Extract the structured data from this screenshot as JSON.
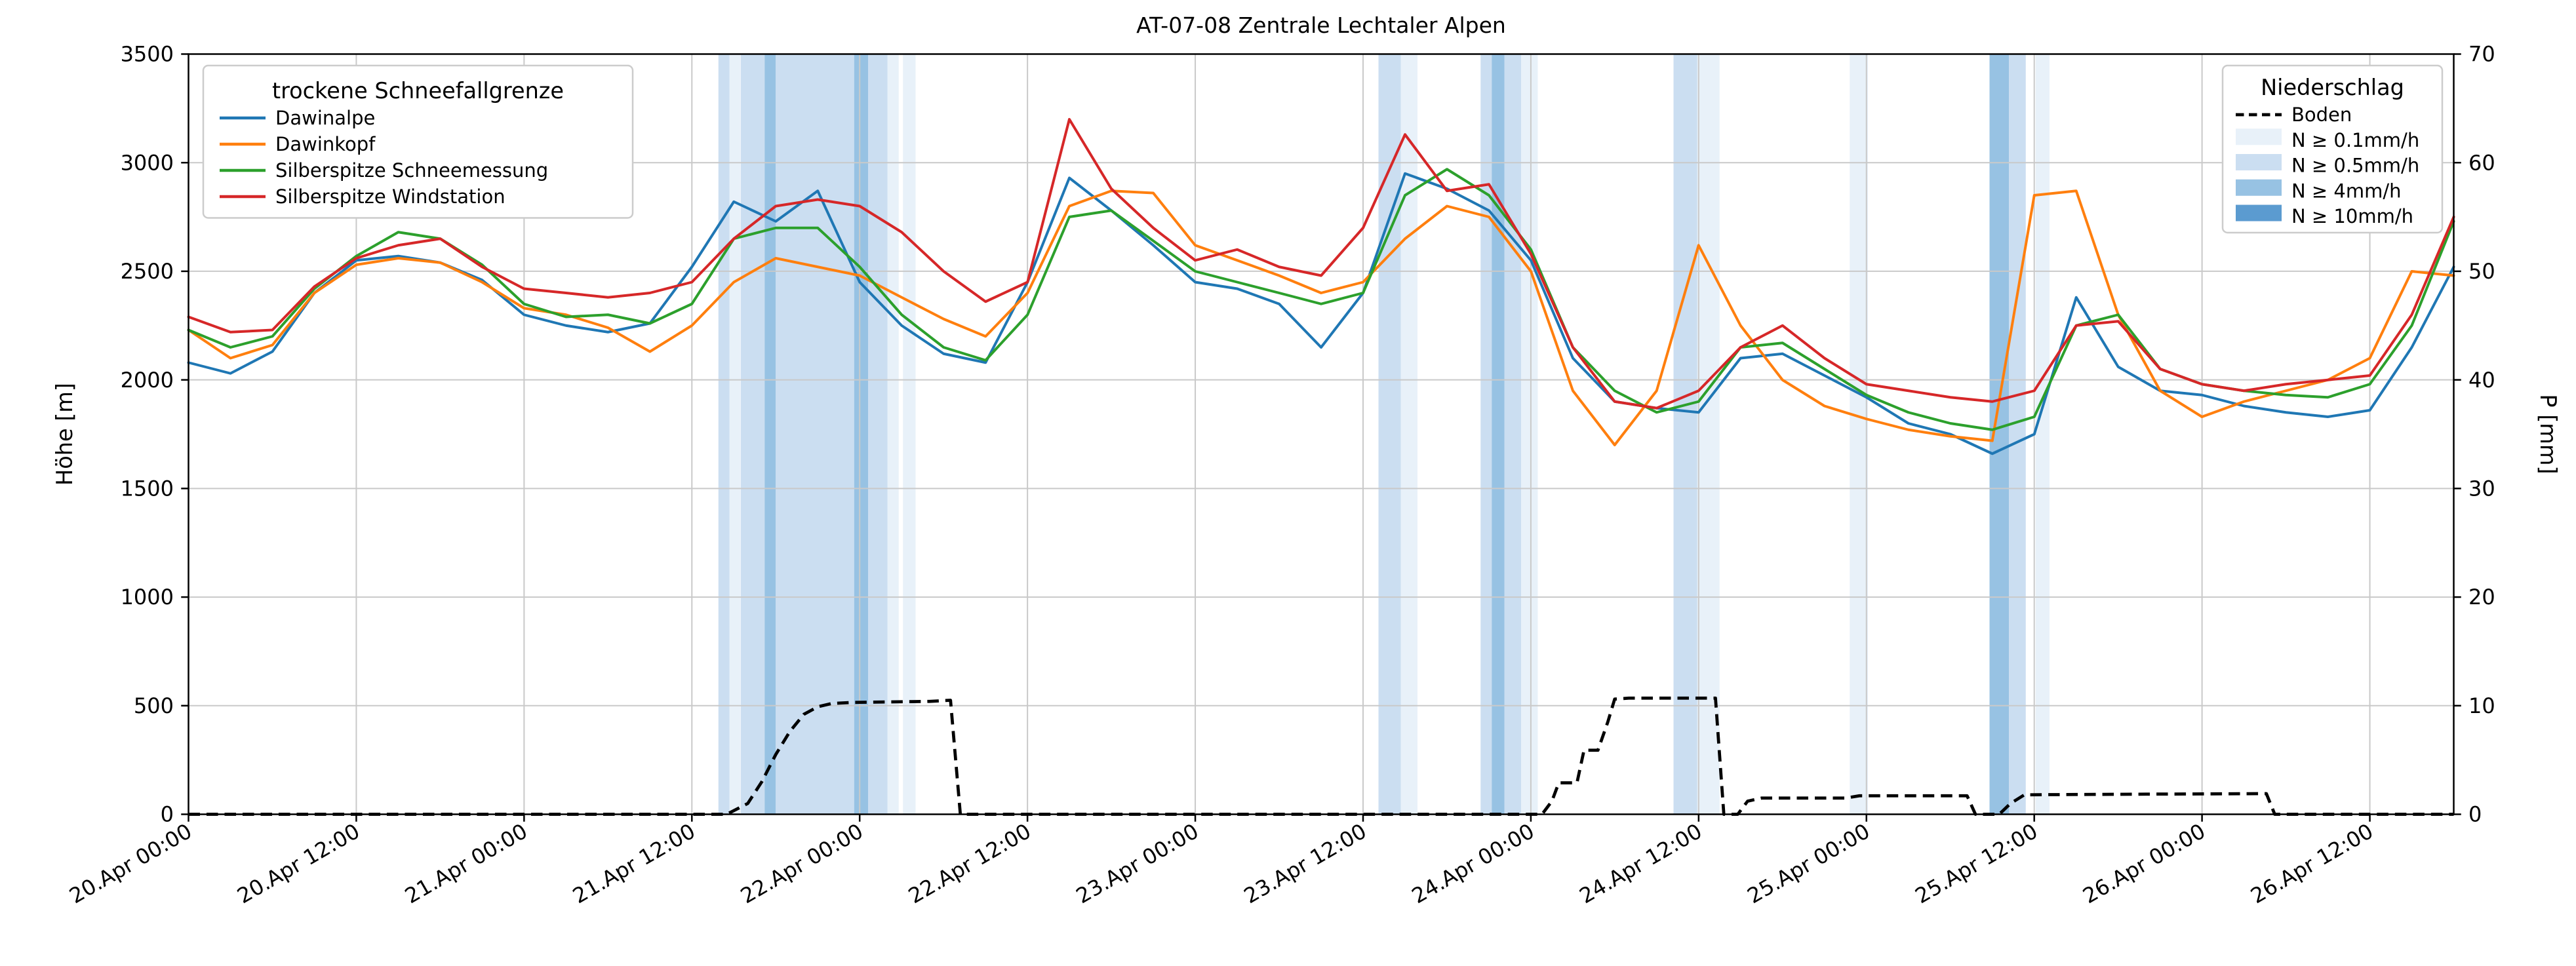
{
  "title": "AT-07-08 Zentrale Lechtaler Alpen",
  "axes": {
    "x": {
      "min_hour": 0,
      "max_hour": 162,
      "tick_hours": [
        0,
        12,
        24,
        36,
        48,
        60,
        72,
        84,
        96,
        108,
        120,
        132,
        144,
        156
      ],
      "tick_labels": [
        "20.Apr 00:00",
        "20.Apr 12:00",
        "21.Apr 00:00",
        "21.Apr 12:00",
        "22.Apr 00:00",
        "22.Apr 12:00",
        "23.Apr 00:00",
        "23.Apr 12:00",
        "24.Apr 00:00",
        "24.Apr 12:00",
        "25.Apr 00:00",
        "25.Apr 12:00",
        "26.Apr 00:00",
        "26.Apr 12:00"
      ]
    },
    "y_left": {
      "label": "Höhe [m]",
      "min": 0,
      "max": 3500,
      "ticks": [
        0,
        500,
        1000,
        1500,
        2000,
        2500,
        3000,
        3500
      ]
    },
    "y_right": {
      "label": "P [mm]",
      "min": 0,
      "max": 70,
      "ticks": [
        0,
        10,
        20,
        30,
        40,
        50,
        60,
        70
      ]
    }
  },
  "legend_left": {
    "title": "trockene Schneefallgrenze",
    "entries": [
      {
        "label": "Dawinalpe",
        "color": "#1f77b4"
      },
      {
        "label": "Dawinkopf",
        "color": "#ff7f0e"
      },
      {
        "label": "Silberspitze Schneemessung",
        "color": "#2ca02c"
      },
      {
        "label": "Silberspitze Windstation",
        "color": "#d62728"
      }
    ]
  },
  "legend_right": {
    "title": "Niederschlag",
    "entries": [
      {
        "label": "Boden",
        "swatch": "dashed-line",
        "color": "#000000"
      },
      {
        "label": "N ≥ 0.1mm/h",
        "swatch": "patch",
        "color": "#e8f1f9"
      },
      {
        "label": "N ≥ 0.5mm/h",
        "swatch": "patch",
        "color": "#cbdef1"
      },
      {
        "label": "N ≥ 4mm/h",
        "swatch": "patch",
        "color": "#97c2e3"
      },
      {
        "label": "N ≥ 10mm/h",
        "swatch": "patch",
        "color": "#5b9bd0"
      }
    ]
  },
  "chart_data": {
    "type": "line",
    "x_unit": "hours since 20.Apr 00:00",
    "grid_color": "#c9c9c9",
    "sample_hours": [
      0,
      3,
      6,
      9,
      12,
      15,
      18,
      21,
      24,
      27,
      30,
      33,
      36,
      39,
      42,
      45,
      48,
      51,
      54,
      57,
      60,
      63,
      66,
      69,
      72,
      75,
      78,
      81,
      84,
      87,
      90,
      93,
      96,
      99,
      102,
      105,
      108,
      111,
      114,
      117,
      120,
      123,
      126,
      129,
      132,
      135,
      138,
      141,
      144,
      147,
      150,
      153,
      156,
      159,
      162
    ],
    "series": [
      {
        "name": "Dawinalpe",
        "color": "#1f77b4",
        "axis": "left",
        "values": [
          2080,
          2030,
          2130,
          2400,
          2550,
          2570,
          2540,
          2460,
          2300,
          2250,
          2220,
          2260,
          2520,
          2820,
          2730,
          2870,
          2450,
          2250,
          2120,
          2080,
          2450,
          2930,
          2780,
          2620,
          2450,
          2420,
          2350,
          2150,
          2400,
          2950,
          2880,
          2780,
          2550,
          2100,
          1900,
          1870,
          1850,
          2100,
          2120,
          2020,
          1920,
          1800,
          1750,
          1660,
          1750,
          2380,
          2060,
          1950,
          1930,
          1880,
          1850,
          1830,
          1860,
          2150,
          2520
        ]
      },
      {
        "name": "Dawinkopf",
        "color": "#ff7f0e",
        "axis": "left",
        "values": [
          2230,
          2100,
          2160,
          2400,
          2530,
          2560,
          2540,
          2450,
          2330,
          2300,
          2240,
          2130,
          2250,
          2450,
          2560,
          2520,
          2480,
          2380,
          2280,
          2200,
          2400,
          2800,
          2870,
          2860,
          2620,
          2550,
          2480,
          2400,
          2450,
          2650,
          2800,
          2750,
          2500,
          1950,
          1700,
          1950,
          2620,
          2250,
          2000,
          1880,
          1820,
          1770,
          1740,
          1720,
          2850,
          2870,
          2300,
          1950,
          1830,
          1900,
          1950,
          2000,
          2100,
          2500,
          2480
        ]
      },
      {
        "name": "Silberspitze Schneemessung",
        "color": "#2ca02c",
        "axis": "left",
        "values": [
          2230,
          2150,
          2200,
          2420,
          2570,
          2680,
          2650,
          2530,
          2350,
          2290,
          2300,
          2260,
          2350,
          2650,
          2700,
          2700,
          2520,
          2300,
          2150,
          2090,
          2300,
          2750,
          2780,
          2640,
          2500,
          2450,
          2400,
          2350,
          2400,
          2850,
          2970,
          2850,
          2600,
          2150,
          1950,
          1850,
          1900,
          2150,
          2170,
          2050,
          1930,
          1850,
          1800,
          1770,
          1830,
          2250,
          2300,
          2050,
          1980,
          1950,
          1930,
          1920,
          1980,
          2250,
          2730
        ]
      },
      {
        "name": "Silberspitze Windstation",
        "color": "#d62728",
        "axis": "left",
        "values": [
          2290,
          2220,
          2230,
          2430,
          2560,
          2620,
          2650,
          2520,
          2420,
          2400,
          2380,
          2400,
          2450,
          2650,
          2800,
          2830,
          2800,
          2680,
          2500,
          2360,
          2450,
          3200,
          2880,
          2700,
          2550,
          2600,
          2520,
          2480,
          2700,
          3130,
          2870,
          2900,
          2580,
          2150,
          1900,
          1870,
          1950,
          2150,
          2250,
          2100,
          1980,
          1950,
          1920,
          1900,
          1950,
          2250,
          2270,
          2050,
          1980,
          1950,
          1980,
          2000,
          2020,
          2300,
          2750
        ]
      }
    ],
    "boden": {
      "name": "Boden",
      "axis": "right",
      "style": "dashed",
      "color": "#000000",
      "points": [
        [
          0,
          0
        ],
        [
          38.5,
          0
        ],
        [
          40,
          1
        ],
        [
          41,
          3
        ],
        [
          42,
          5.5
        ],
        [
          43,
          7.6
        ],
        [
          44,
          9.2
        ],
        [
          45,
          9.9
        ],
        [
          46,
          10.2
        ],
        [
          47.5,
          10.3
        ],
        [
          53,
          10.4
        ],
        [
          54.5,
          10.5
        ],
        [
          55.2,
          0
        ],
        [
          96.8,
          0
        ],
        [
          97.5,
          1.2
        ],
        [
          98,
          2.9
        ],
        [
          99.3,
          2.9
        ],
        [
          99.8,
          5.9
        ],
        [
          100.8,
          5.9
        ],
        [
          101.5,
          8.5
        ],
        [
          102,
          10.6
        ],
        [
          103,
          10.7
        ],
        [
          109.2,
          10.7
        ],
        [
          109.8,
          0
        ],
        [
          110.8,
          0
        ],
        [
          111.5,
          1.2
        ],
        [
          112.5,
          1.5
        ],
        [
          118.5,
          1.5
        ],
        [
          119.5,
          1.7
        ],
        [
          127.2,
          1.7
        ],
        [
          127.8,
          0
        ],
        [
          129.5,
          0
        ],
        [
          130.3,
          1
        ],
        [
          131.3,
          1.8
        ],
        [
          140,
          1.85
        ],
        [
          148.6,
          1.9
        ],
        [
          149.2,
          0
        ],
        [
          162,
          0
        ]
      ]
    },
    "band_colors": {
      "0.1": "#e8f1f9",
      "0.5": "#cbdef1",
      "4": "#97c2e3",
      "10": "#5b9bd0"
    },
    "precip_bands": [
      {
        "start": 37.9,
        "end": 38.7,
        "level": "0.5"
      },
      {
        "start": 38.7,
        "end": 39.5,
        "level": "0.1"
      },
      {
        "start": 39.5,
        "end": 41.2,
        "level": "0.5"
      },
      {
        "start": 41.2,
        "end": 42.0,
        "level": "4"
      },
      {
        "start": 42.0,
        "end": 47.6,
        "level": "0.5"
      },
      {
        "start": 47.6,
        "end": 48.6,
        "level": "4"
      },
      {
        "start": 48.6,
        "end": 50.0,
        "level": "0.5"
      },
      {
        "start": 50.0,
        "end": 50.8,
        "level": "0.1"
      },
      {
        "start": 51.1,
        "end": 52.0,
        "level": "0.1"
      },
      {
        "start": 85.1,
        "end": 86.7,
        "level": "0.5"
      },
      {
        "start": 86.7,
        "end": 87.9,
        "level": "0.1"
      },
      {
        "start": 92.4,
        "end": 93.2,
        "level": "0.5"
      },
      {
        "start": 93.2,
        "end": 94.1,
        "level": "4"
      },
      {
        "start": 94.1,
        "end": 95.3,
        "level": "0.5"
      },
      {
        "start": 95.3,
        "end": 96.5,
        "level": "0.1"
      },
      {
        "start": 106.2,
        "end": 107.9,
        "level": "0.5"
      },
      {
        "start": 107.9,
        "end": 109.5,
        "level": "0.1"
      },
      {
        "start": 118.8,
        "end": 120.1,
        "level": "0.1"
      },
      {
        "start": 128.8,
        "end": 130.2,
        "level": "4"
      },
      {
        "start": 130.2,
        "end": 131.4,
        "level": "0.5"
      },
      {
        "start": 132.1,
        "end": 133.1,
        "level": "0.1"
      }
    ]
  }
}
